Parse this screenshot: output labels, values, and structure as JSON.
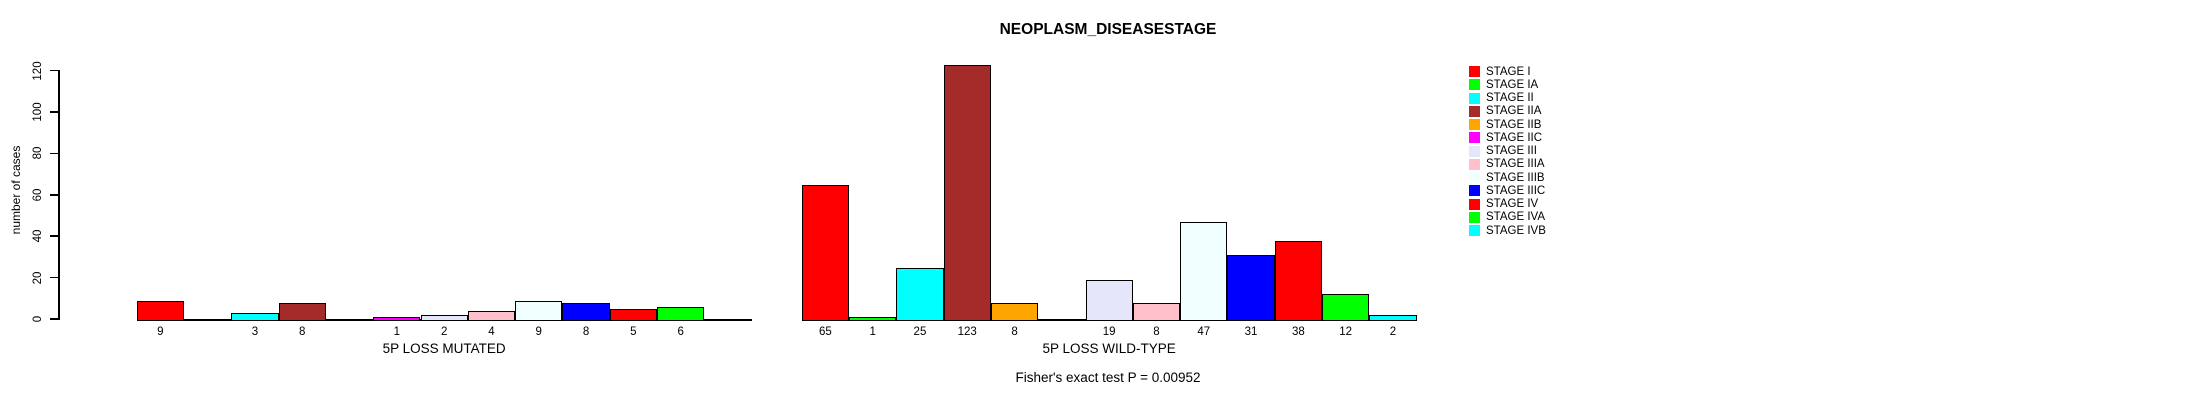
{
  "chart_data": {
    "type": "bar",
    "title": "NEOPLASM_DISEASESTAGE",
    "ylabel": "number of cases",
    "ylim": [
      0,
      120
    ],
    "yticks": [
      0,
      20,
      40,
      60,
      80,
      100,
      120
    ],
    "categories": [
      "STAGE I",
      "STAGE IA",
      "STAGE II",
      "STAGE IIA",
      "STAGE IIB",
      "STAGE IIC",
      "STAGE III",
      "STAGE IIIA",
      "STAGE IIIB",
      "STAGE IIIC",
      "STAGE IV",
      "STAGE IVA",
      "STAGE IVB"
    ],
    "category_colors": [
      "#FF0000",
      "#00FF00",
      "#00FFFF",
      "#A52A2A",
      "#FFA500",
      "#FF00FF",
      "#E6E6FA",
      "#FFC0CB",
      "#F0FFFF",
      "#0000FF",
      "#FF0000",
      "#00FF00",
      "#00FFFF"
    ],
    "series": [
      {
        "name": "5P LOSS MUTATED",
        "values": [
          9,
          0,
          3,
          8,
          0,
          1,
          2,
          4,
          9,
          8,
          5,
          6,
          0
        ]
      },
      {
        "name": "5P LOSS WILD-TYPE",
        "values": [
          65,
          1,
          25,
          123,
          8,
          0,
          19,
          8,
          47,
          31,
          38,
          12,
          2
        ]
      }
    ],
    "grid": false,
    "legend_position": "right",
    "bar_value_labels_shown": true,
    "annotation": "Fisher's exact test P = 0.00952"
  },
  "legend": {
    "items": [
      {
        "label": "STAGE I",
        "color": "#FF0000"
      },
      {
        "label": "STAGE IA",
        "color": "#00FF00"
      },
      {
        "label": "STAGE II",
        "color": "#00FFFF"
      },
      {
        "label": "STAGE IIA",
        "color": "#A52A2A"
      },
      {
        "label": "STAGE IIB",
        "color": "#FFA500"
      },
      {
        "label": "STAGE IIC",
        "color": "#FF00FF"
      },
      {
        "label": "STAGE III",
        "color": "#E6E6FA"
      },
      {
        "label": "STAGE IIIA",
        "color": "#FFC0CB"
      },
      {
        "label": "STAGE IIIB",
        "color": "#F0FFFF"
      },
      {
        "label": "STAGE IIIC",
        "color": "#0000FF"
      },
      {
        "label": "STAGE IV",
        "color": "#FF0000"
      },
      {
        "label": "STAGE IVA",
        "color": "#00FF00"
      },
      {
        "label": "STAGE IVB",
        "color": "#00FFFF"
      }
    ]
  }
}
